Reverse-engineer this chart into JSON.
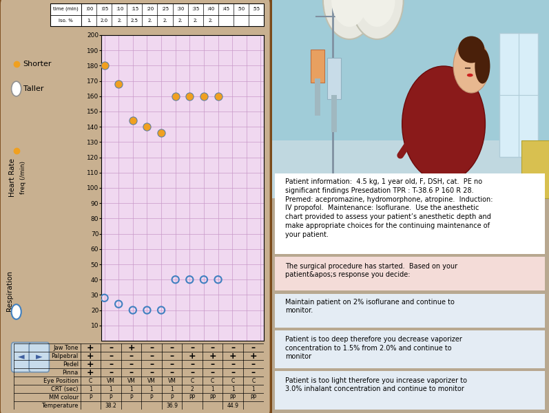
{
  "fig_bg": "#b8a890",
  "left_panel_bg": "#c8b090",
  "chart_bg": "#f0d8f0",
  "right_bg": "#a8c8d8",
  "title_row": [
    "time (min)",
    ":00",
    ":05",
    ":10",
    ":15",
    ":20",
    ":25",
    ":30",
    ":35",
    ":40",
    ":45",
    ":50",
    ":55"
  ],
  "iso_row": [
    "Iso. %",
    "1.",
    "2.0",
    "2.",
    "2.5",
    "2.",
    "2.",
    "2.",
    "2.",
    "2.",
    "",
    "",
    ""
  ],
  "heart_rate_times": [
    0,
    5,
    10,
    15,
    20,
    25,
    30,
    35,
    40
  ],
  "heart_rate_values": [
    180,
    168,
    144,
    140,
    136,
    160,
    160,
    160,
    160
  ],
  "hr_color": "#f0a020",
  "resp_times": [
    0,
    5,
    10,
    15,
    20,
    25,
    30,
    35,
    40
  ],
  "resp_values": [
    28,
    24,
    20,
    20,
    20,
    40,
    40,
    40,
    40
  ],
  "resp_color": "#4080c0",
  "ymin": 0,
  "ymax": 200,
  "ytick_step": 10,
  "table_rows": [
    "Jaw Tone",
    "Palpebral",
    "Pedel",
    "Pinna",
    "Eye Position",
    "CRT (sec)",
    "MM colour",
    "Temperature"
  ],
  "jaw_tone": [
    "+",
    "–",
    "+",
    "–",
    "–",
    "–",
    "–",
    "–",
    "–"
  ],
  "palpebral": [
    "+",
    "–",
    "–",
    "–",
    "–",
    "+",
    "+",
    "+",
    "+"
  ],
  "pedel": [
    "+",
    "–",
    "–",
    "–",
    "–",
    "–",
    "–",
    "–",
    "–"
  ],
  "pinna": [
    "+",
    "–",
    "–",
    "–",
    "–",
    "–",
    "–",
    "–",
    "–"
  ],
  "eye_pos": [
    "C",
    "VM",
    "VM",
    "VM",
    "VM",
    "C",
    "C",
    "C",
    "C"
  ],
  "crt": [
    "1",
    "1",
    "1",
    "1",
    "1",
    "2",
    "1",
    "1",
    "1"
  ],
  "mm_colour": [
    "P",
    "P",
    "P",
    "P",
    "P",
    "PP",
    "PP",
    "PP",
    "PP"
  ],
  "temperature": [
    "",
    "38.2",
    "",
    "",
    "36.9",
    "",
    "",
    "44.9",
    ""
  ],
  "patient_info": "Patient information:  4.5 kg, 1 year old, F, DSH, cat.  PE no\nsignificant findings Presedation TPR : T-38.6 P 160 R 28.\nPremed: acepromazine, hydromorphone, atropine.  Induction:\nIV propofol.  Maintenance: Isoflurane.  Use the anesthetic\nchart provided to assess your patient’s anesthetic depth and\nmake appropriate choices for the continuing maintenance of\nyour patient.",
  "procedure_text": "The surgical procedure has started.  Based on your\npatient&apos;s response you decide:",
  "option1": "Maintain patient on 2% isoflurane and continue to\nmonitor.",
  "option2": "Patient is too deep therefore you decrease vaporizer\nconcentration to 1.5% from 2.0% and continue to\nmonitor",
  "option3": "Patient is too light therefore you increase vaporizer to\n3.0% inhalant concentration and continue to monitor"
}
